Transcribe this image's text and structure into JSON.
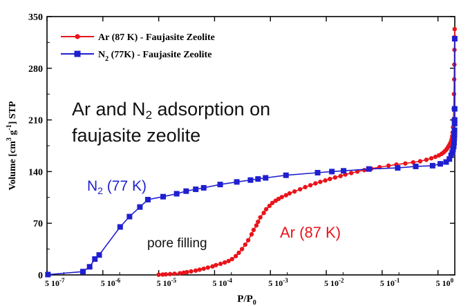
{
  "chart_data": {
    "type": "line",
    "title": "",
    "xlabel": "P/P",
    "xlabel_sub": "0",
    "ylabel_parts": [
      "Volume [cm",
      "3",
      " g",
      "-1",
      "] STP"
    ],
    "x_scale": "log",
    "xlim": [
      5e-08,
      1.0
    ],
    "ylim": [
      0,
      350
    ],
    "y_ticks": [
      "0",
      "70",
      "140",
      "210",
      "280",
      "350"
    ],
    "x_ticks": [
      {
        "value": 5e-08,
        "base": "5 10",
        "exp": "-7"
      },
      {
        "value": 5e-07,
        "base": "5 10",
        "exp": "-6"
      },
      {
        "value": 5e-06,
        "base": "5 10",
        "exp": "-5"
      },
      {
        "value": 5e-05,
        "base": "5 10",
        "exp": "-4"
      },
      {
        "value": 0.0005,
        "base": "5 10",
        "exp": "-3"
      },
      {
        "value": 0.005,
        "base": "5 10",
        "exp": "-2"
      },
      {
        "value": 0.05,
        "base": "5 10",
        "exp": "-1"
      },
      {
        "value": 0.5,
        "base": "5 10",
        "exp": "0"
      }
    ],
    "legend": {
      "position": "top-left",
      "entries": [
        {
          "series": 0,
          "parts": [
            {
              "t": "Ar (87 K)  - Faujasite Zeolite"
            }
          ]
        },
        {
          "series": 1,
          "parts": [
            {
              "t": "N"
            },
            {
              "t": "2",
              "sub": true
            },
            {
              "t": " (77K)  - Faujasite Zeolite"
            }
          ]
        }
      ]
    },
    "series": [
      {
        "color": "#e8141c",
        "marker": "circle",
        "points": [
          [
            5e-06,
            0.3
          ],
          [
            5.9e-06,
            0.5
          ],
          [
            6.7e-06,
            0.8
          ],
          [
            8e-06,
            1.2
          ],
          [
            9.6e-06,
            1.6
          ],
          [
            1.2e-05,
            2.3
          ],
          [
            1.4e-05,
            3.0
          ],
          [
            1.6e-05,
            3.8
          ],
          [
            1.9e-05,
            4.8
          ],
          [
            2.3e-05,
            5.9
          ],
          [
            2.7e-05,
            7.1
          ],
          [
            3.2e-05,
            8.4
          ],
          [
            3.8e-05,
            9.9
          ],
          [
            4.6e-05,
            11.5
          ],
          [
            5.3e-05,
            13.3
          ],
          [
            6.4e-05,
            15.0
          ],
          [
            7.6e-05,
            16.9
          ],
          [
            8.9e-05,
            18.8
          ],
          [
            0.000103,
            21.5
          ],
          [
            0.00012,
            25.5
          ],
          [
            0.000136,
            30.0
          ],
          [
            0.000155,
            35.0
          ],
          [
            0.000177,
            41.0
          ],
          [
            0.0002,
            47.0
          ],
          [
            0.00023,
            55.0
          ],
          [
            0.00025,
            61.0
          ],
          [
            0.00028,
            67.0
          ],
          [
            0.0003,
            72.0
          ],
          [
            0.00033,
            78.0
          ],
          [
            0.00038,
            84.0
          ],
          [
            0.00042,
            89.0
          ],
          [
            0.00048,
            93.5
          ],
          [
            0.00054,
            97.5
          ],
          [
            0.00062,
            100.5
          ],
          [
            0.0007,
            103.0
          ],
          [
            0.0008,
            105.5
          ],
          [
            0.00095,
            108.0
          ],
          [
            0.0011,
            110.5
          ],
          [
            0.00135,
            113.0
          ],
          [
            0.0017,
            116.0
          ],
          [
            0.0021,
            119.0
          ],
          [
            0.0026,
            121.5
          ],
          [
            0.0032,
            124.0
          ],
          [
            0.0039,
            126.0
          ],
          [
            0.0048,
            128.0
          ],
          [
            0.0058,
            130.0
          ],
          [
            0.0072,
            132.0
          ],
          [
            0.009,
            134.0
          ],
          [
            0.011,
            136.0
          ],
          [
            0.014,
            138.0
          ],
          [
            0.018,
            140.0
          ],
          [
            0.024,
            142.0
          ],
          [
            0.032,
            144.0
          ],
          [
            0.045,
            146.0
          ],
          [
            0.065,
            148.0
          ],
          [
            0.09,
            149.5
          ],
          [
            0.13,
            151.0
          ],
          [
            0.18,
            152.5
          ],
          [
            0.24,
            154.0
          ],
          [
            0.31,
            156.0
          ],
          [
            0.38,
            158.0
          ],
          [
            0.45,
            160.0
          ],
          [
            0.52,
            162.0
          ],
          [
            0.58,
            164.0
          ],
          [
            0.63,
            166.0
          ],
          [
            0.67,
            168.0
          ],
          [
            0.71,
            170.0
          ],
          [
            0.74,
            172.0
          ],
          [
            0.77,
            174.0
          ],
          [
            0.8,
            176.0
          ],
          [
            0.83,
            178.5
          ],
          [
            0.86,
            181.0
          ],
          [
            0.88,
            184.0
          ],
          [
            0.9,
            188.0
          ],
          [
            0.915,
            193.0
          ],
          [
            0.93,
            200.0
          ],
          [
            0.945,
            210.0
          ],
          [
            0.958,
            225.0
          ],
          [
            0.968,
            245.0
          ],
          [
            0.976,
            265.0
          ],
          [
            0.982,
            285.0
          ],
          [
            0.987,
            305.0
          ],
          [
            0.991,
            322.0
          ],
          [
            0.994,
            333.0
          ]
        ]
      },
      {
        "color": "#1f1fd0",
        "marker": "square",
        "points": [
          [
            5.2e-08,
            0.5
          ],
          [
            2.2e-07,
            4.5
          ],
          [
            2.9e-07,
            11.0
          ],
          [
            3.6e-07,
            21.5
          ],
          [
            4.3e-07,
            27.0
          ],
          [
            1.02e-06,
            65.0
          ],
          [
            1.5e-06,
            79.0
          ],
          [
            2.3e-06,
            92.0
          ],
          [
            3.2e-06,
            102.0
          ],
          [
            6e-06,
            106.0
          ],
          [
            1.05e-05,
            110.0
          ],
          [
            1.55e-05,
            113.5
          ],
          [
            2.3e-05,
            116.0
          ],
          [
            3.2e-05,
            118.0
          ],
          [
            6.3e-05,
            122.5
          ],
          [
            0.000125,
            126.0
          ],
          [
            0.00022,
            128.5
          ],
          [
            0.0003,
            130.0
          ],
          [
            0.00041,
            131.5
          ],
          [
            0.00095,
            135.0
          ],
          [
            0.0035,
            138.5
          ],
          [
            0.0063,
            140.0
          ],
          [
            0.0102,
            141.0
          ],
          [
            0.029,
            143.5
          ],
          [
            0.095,
            145.0
          ],
          [
            0.2,
            147.0
          ],
          [
            0.4,
            148.0
          ],
          [
            0.55,
            150.5
          ],
          [
            0.7,
            153.0
          ],
          [
            0.8,
            157.0
          ],
          [
            0.86,
            162.0
          ],
          [
            0.9,
            166.0
          ],
          [
            0.93,
            170.0
          ],
          [
            0.955,
            174.0
          ],
          [
            0.97,
            179.0
          ],
          [
            0.978,
            185.0
          ],
          [
            0.984,
            190.0
          ],
          [
            0.988,
            196.0
          ],
          [
            0.991,
            205.0
          ],
          [
            0.993,
            210.0
          ],
          [
            0.995,
            225.0
          ],
          [
            0.997,
            320.0
          ]
        ]
      }
    ],
    "annotations": [
      {
        "name": "headline-line1",
        "parts": [
          {
            "t": "Ar and N"
          },
          {
            "t": "2",
            "sub": true
          },
          {
            "t": " adsorption on"
          }
        ]
      },
      {
        "name": "headline-line2",
        "parts": [
          {
            "t": "faujasite zeolite"
          }
        ]
      },
      {
        "name": "n2-curve-label",
        "parts": [
          {
            "t": "N"
          },
          {
            "t": "2",
            "sub": true
          },
          {
            "t": " (77 K)"
          }
        ]
      },
      {
        "name": "pore-filling-label",
        "parts": [
          {
            "t": "pore filling"
          }
        ]
      },
      {
        "name": "ar-curve-label",
        "parts": [
          {
            "t": "Ar (87 K)"
          }
        ]
      }
    ]
  }
}
